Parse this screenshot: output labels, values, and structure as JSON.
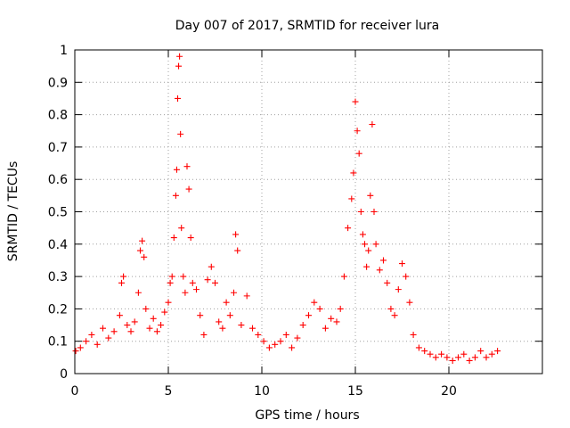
{
  "chart_data": {
    "type": "scatter",
    "title": "Day 007 of 2017, SRMTID for receiver lura",
    "xlabel": "GPS time / hours",
    "ylabel": "SRMTID / TECUs",
    "xlim": [
      0,
      25
    ],
    "ylim": [
      0,
      1
    ],
    "x_ticks": [
      0,
      5,
      10,
      15,
      20
    ],
    "x_tick_labels": [
      "0",
      "5",
      "10",
      "15",
      "20"
    ],
    "y_ticks": [
      0,
      0.1,
      0.2,
      0.3,
      0.4,
      0.5,
      0.6,
      0.7,
      0.8,
      0.9,
      1
    ],
    "y_tick_labels": [
      "0",
      "0.1",
      "0.2",
      "0.3",
      "0.4",
      "0.5",
      "0.6",
      "0.7",
      "0.8",
      "0.9",
      "1"
    ],
    "grid": true,
    "marker": "plus",
    "series_color": "#ff0000",
    "series": [
      {
        "name": "SRMTID",
        "x": [
          0.05,
          0.3,
          0.6,
          0.9,
          1.2,
          1.5,
          1.8,
          2.1,
          2.4,
          2.5,
          2.6,
          2.8,
          3.0,
          3.2,
          3.4,
          3.5,
          3.6,
          3.7,
          3.8,
          4.0,
          4.2,
          4.4,
          4.6,
          4.8,
          5.0,
          5.1,
          5.2,
          5.3,
          5.4,
          5.45,
          5.5,
          5.55,
          5.6,
          5.65,
          5.7,
          5.8,
          5.9,
          6.0,
          6.1,
          6.2,
          6.3,
          6.5,
          6.7,
          6.9,
          7.1,
          7.3,
          7.5,
          7.7,
          7.9,
          8.1,
          8.3,
          8.5,
          8.6,
          8.7,
          8.9,
          9.2,
          9.5,
          9.8,
          10.1,
          10.4,
          10.7,
          11.0,
          11.3,
          11.6,
          11.9,
          12.2,
          12.5,
          12.8,
          13.1,
          13.4,
          13.7,
          14.0,
          14.2,
          14.4,
          14.6,
          14.8,
          14.9,
          15.0,
          15.1,
          15.2,
          15.3,
          15.4,
          15.5,
          15.6,
          15.7,
          15.8,
          15.9,
          16.0,
          16.1,
          16.3,
          16.5,
          16.7,
          16.9,
          17.1,
          17.3,
          17.5,
          17.7,
          17.9,
          18.1,
          18.4,
          18.7,
          19.0,
          19.3,
          19.6,
          19.9,
          20.2,
          20.5,
          20.8,
          21.1,
          21.4,
          21.7,
          22.0,
          22.3,
          22.6
        ],
        "y": [
          0.07,
          0.08,
          0.1,
          0.12,
          0.09,
          0.14,
          0.11,
          0.13,
          0.18,
          0.28,
          0.3,
          0.15,
          0.13,
          0.16,
          0.25,
          0.38,
          0.41,
          0.36,
          0.2,
          0.14,
          0.17,
          0.13,
          0.15,
          0.19,
          0.22,
          0.28,
          0.3,
          0.42,
          0.55,
          0.63,
          0.85,
          0.95,
          0.98,
          0.74,
          0.45,
          0.3,
          0.25,
          0.64,
          0.57,
          0.42,
          0.28,
          0.26,
          0.18,
          0.12,
          0.29,
          0.33,
          0.28,
          0.16,
          0.14,
          0.22,
          0.18,
          0.25,
          0.43,
          0.38,
          0.15,
          0.24,
          0.14,
          0.12,
          0.1,
          0.08,
          0.09,
          0.1,
          0.12,
          0.08,
          0.11,
          0.15,
          0.18,
          0.22,
          0.2,
          0.14,
          0.17,
          0.16,
          0.2,
          0.3,
          0.45,
          0.54,
          0.62,
          0.84,
          0.75,
          0.68,
          0.5,
          0.43,
          0.4,
          0.33,
          0.38,
          0.55,
          0.77,
          0.5,
          0.4,
          0.32,
          0.35,
          0.28,
          0.2,
          0.18,
          0.26,
          0.34,
          0.3,
          0.22,
          0.12,
          0.08,
          0.07,
          0.06,
          0.05,
          0.06,
          0.05,
          0.04,
          0.05,
          0.06,
          0.04,
          0.05,
          0.07,
          0.05,
          0.06,
          0.07
        ]
      }
    ]
  }
}
